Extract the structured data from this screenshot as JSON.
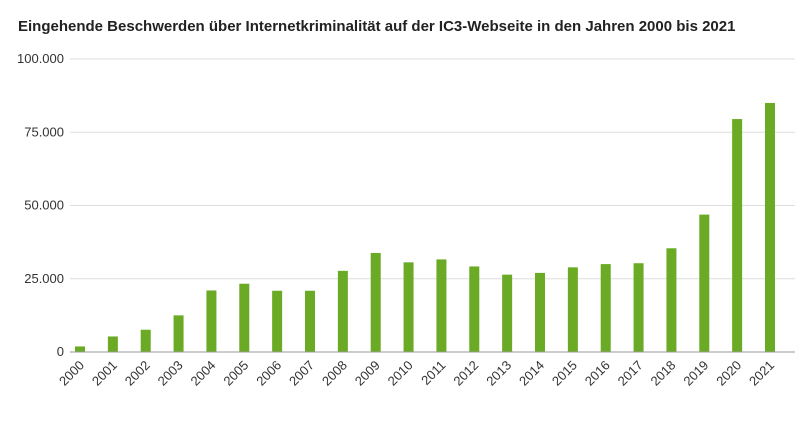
{
  "chart_data": {
    "type": "bar",
    "title": "Eingehende Beschwerden über Internetkriminalität auf der IC3-Webseite in den Jahren 2000 bis 2021",
    "xlabel": "",
    "ylabel": "",
    "categories": [
      "2000",
      "2001",
      "2002",
      "2003",
      "2004",
      "2005",
      "2006",
      "2007",
      "2008",
      "2009",
      "2010",
      "2011",
      "2012",
      "2013",
      "2014",
      "2015",
      "2016",
      "2017",
      "2018",
      "2019",
      "2020",
      "2021"
    ],
    "values": [
      1900,
      5300,
      7600,
      12500,
      21000,
      23300,
      20900,
      20900,
      27700,
      33800,
      30600,
      31600,
      29200,
      26400,
      27000,
      28900,
      30000,
      30300,
      35400,
      46900,
      79500,
      85000
    ],
    "ylim": [
      0,
      100000
    ],
    "yticks": [
      0,
      25000,
      50000,
      75000,
      100000
    ],
    "ytick_labels": [
      "0",
      "25.000",
      "50.000",
      "75.000",
      "100.000"
    ],
    "bar_color": "#6aaa24",
    "grid": true,
    "legend": "none"
  }
}
